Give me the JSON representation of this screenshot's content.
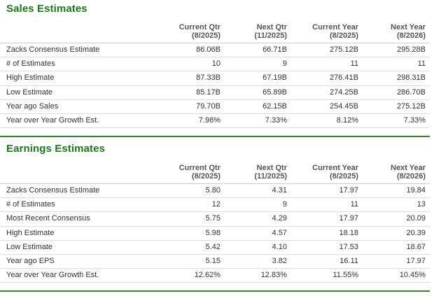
{
  "sales": {
    "title": "Sales Estimates",
    "columns": [
      {
        "label": "Current Qtr",
        "sub": "(8/2025)"
      },
      {
        "label": "Next Qtr",
        "sub": "(11/2025)"
      },
      {
        "label": "Current Year",
        "sub": "(8/2025)"
      },
      {
        "label": "Next Year",
        "sub": "(8/2026)"
      }
    ],
    "rows": [
      {
        "label": "Zacks Consensus Estimate",
        "values": [
          "86.06B",
          "66.71B",
          "275.12B",
          "295.28B"
        ]
      },
      {
        "label": "# of Estimates",
        "values": [
          "10",
          "9",
          "11",
          "11"
        ]
      },
      {
        "label": "High Estimate",
        "values": [
          "87.33B",
          "67.19B",
          "276.41B",
          "298.31B"
        ]
      },
      {
        "label": "Low Estimate",
        "values": [
          "85.17B",
          "65.89B",
          "274.25B",
          "286.70B"
        ]
      },
      {
        "label": "Year ago Sales",
        "values": [
          "79.70B",
          "62.15B",
          "254.45B",
          "275.12B"
        ]
      },
      {
        "label": "Year over Year Growth Est.",
        "values": [
          "7.98%",
          "7.33%",
          "8.12%",
          "7.33%"
        ]
      }
    ]
  },
  "earnings": {
    "title": "Earnings Estimates",
    "columns": [
      {
        "label": "Current Qtr",
        "sub": "(8/2025)"
      },
      {
        "label": "Next Qtr",
        "sub": "(11/2025)"
      },
      {
        "label": "Current Year",
        "sub": "(8/2025)"
      },
      {
        "label": "Next Year",
        "sub": "(8/2026)"
      }
    ],
    "rows": [
      {
        "label": "Zacks Consensus Estimate",
        "values": [
          "5.80",
          "4.31",
          "17.97",
          "19.84"
        ]
      },
      {
        "label": "# of Estimates",
        "values": [
          "12",
          "9",
          "11",
          "13"
        ]
      },
      {
        "label": "Most Recent Consensus",
        "values": [
          "5.75",
          "4.29",
          "17.97",
          "20.09"
        ]
      },
      {
        "label": "High Estimate",
        "values": [
          "5.98",
          "4.57",
          "18.18",
          "20.39"
        ]
      },
      {
        "label": "Low Estimate",
        "values": [
          "5.42",
          "4.10",
          "17.53",
          "18.67"
        ]
      },
      {
        "label": "Year ago EPS",
        "values": [
          "5.15",
          "3.82",
          "16.11",
          "17.97"
        ]
      },
      {
        "label": "Year over Year Growth Est.",
        "values": [
          "12.62%",
          "12.83%",
          "11.55%",
          "10.45%"
        ]
      }
    ]
  },
  "colors": {
    "title_green": "#1a7a1a",
    "rule_green": "#2a8a2a",
    "row_divider": "#dcdcdc"
  }
}
